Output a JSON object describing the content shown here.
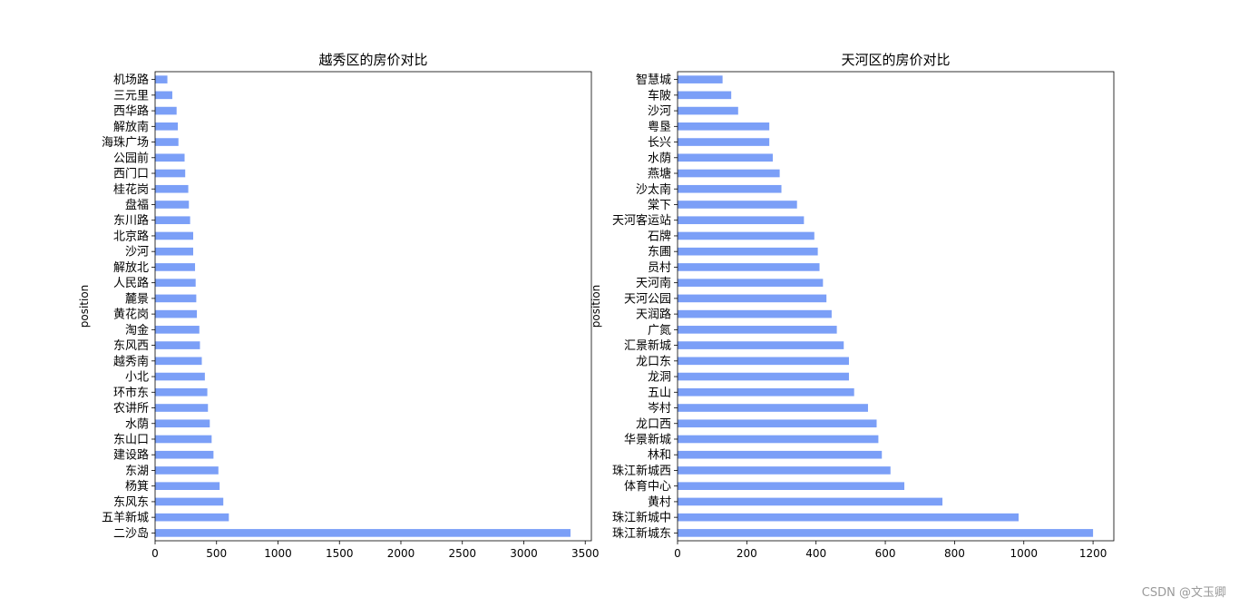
{
  "watermark": "CSDN @文玉卿",
  "chart_data": [
    {
      "type": "bar",
      "orientation": "horizontal",
      "title": "越秀区的房价对比",
      "xlabel": "",
      "ylabel": "position",
      "bar_color": "#7b9ff7",
      "xlim": [
        0,
        3550
      ],
      "xticks": [
        0,
        500,
        1000,
        1500,
        2000,
        2500,
        3000,
        3500
      ],
      "categories": [
        "二沙岛",
        "五羊新城",
        "东风东",
        "杨箕",
        "东湖",
        "建设路",
        "东山口",
        "水荫",
        "农讲所",
        "环市东",
        "小北",
        "越秀南",
        "东风西",
        "淘金",
        "黄花岗",
        "麓景",
        "人民路",
        "解放北",
        "沙河",
        "北京路",
        "东川路",
        "盘福",
        "桂花岗",
        "西门口",
        "公园前",
        "海珠广场",
        "解放南",
        "西华路",
        "三元里",
        "机场路"
      ],
      "values": [
        3380,
        600,
        555,
        525,
        515,
        475,
        460,
        445,
        430,
        425,
        405,
        380,
        365,
        360,
        340,
        335,
        330,
        325,
        310,
        310,
        285,
        275,
        270,
        245,
        240,
        190,
        185,
        175,
        140,
        100
      ]
    },
    {
      "type": "bar",
      "orientation": "horizontal",
      "title": "天河区的房价对比",
      "xlabel": "",
      "ylabel": "position",
      "bar_color": "#7b9ff7",
      "xlim": [
        0,
        1260
      ],
      "xticks": [
        0,
        200,
        400,
        600,
        800,
        1000,
        1200
      ],
      "categories": [
        "珠江新城东",
        "珠江新城中",
        "黄村",
        "体育中心",
        "珠江新城西",
        "林和",
        "华景新城",
        "龙口西",
        "岑村",
        "五山",
        "龙洞",
        "龙口东",
        "汇景新城",
        "广氮",
        "天润路",
        "天河公园",
        "天河南",
        "员村",
        "东圃",
        "石牌",
        "天河客运站",
        "棠下",
        "沙太南",
        "燕塘",
        "水荫",
        "长兴",
        "粤垦",
        "沙河",
        "车陂",
        "智慧城"
      ],
      "values": [
        1200,
        985,
        765,
        655,
        615,
        590,
        580,
        575,
        550,
        510,
        495,
        495,
        480,
        460,
        445,
        430,
        420,
        410,
        405,
        395,
        365,
        345,
        300,
        295,
        275,
        265,
        265,
        175,
        155,
        130
      ]
    }
  ]
}
